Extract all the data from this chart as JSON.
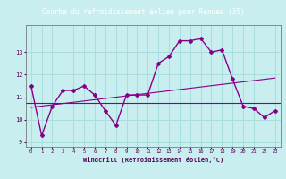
{
  "title": "Courbe du refroidissement éolien pour Rennes (35)",
  "xlabel": "Windchill (Refroidissement éolien,°C)",
  "background_color": "#c8eef0",
  "grid_color": "#aadddd",
  "line_color": "#880088",
  "title_bg": "#660066",
  "hours": [
    0,
    1,
    2,
    3,
    4,
    5,
    6,
    7,
    8,
    9,
    10,
    11,
    12,
    13,
    14,
    15,
    16,
    17,
    18,
    19,
    20,
    21,
    22,
    23
  ],
  "temp_data": [
    11.5,
    9.3,
    10.6,
    11.3,
    11.3,
    11.5,
    11.1,
    10.4,
    9.75,
    11.1,
    11.1,
    11.1,
    12.5,
    12.8,
    13.5,
    13.5,
    13.6,
    13.0,
    13.1,
    11.8,
    10.6,
    10.5,
    10.1,
    10.4
  ],
  "trend_y": [
    10.55,
    11.85
  ],
  "mean_y": 10.75,
  "ylim": [
    8.8,
    14.2
  ],
  "xlim": [
    -0.5,
    23.5
  ],
  "yticks": [
    9,
    10,
    11,
    12,
    13
  ],
  "xticks": [
    0,
    1,
    2,
    3,
    4,
    5,
    6,
    7,
    8,
    9,
    10,
    11,
    12,
    13,
    14,
    15,
    16,
    17,
    18,
    19,
    20,
    21,
    22,
    23
  ]
}
